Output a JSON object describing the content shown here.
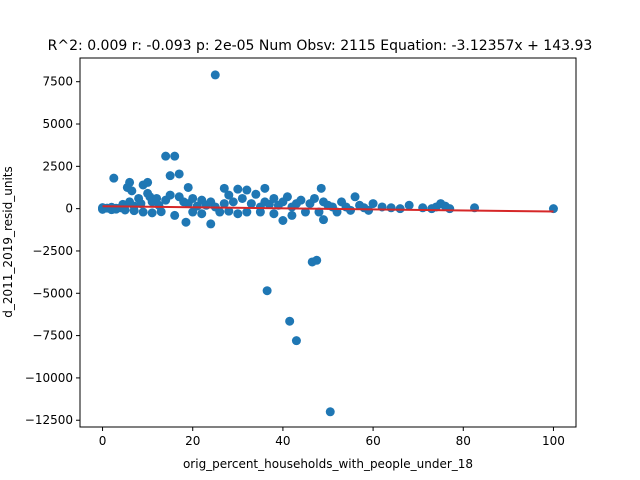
{
  "chart_data": {
    "type": "scatter",
    "title": "R^2: 0.009 r: -0.093 p: 2e-05 Num Obsv: 2115 Equation: -3.12357x + 143.93",
    "xlabel": "orig_percent_households_with_people_under_18",
    "ylabel": "d_2011_2019_resid_units",
    "xlim": [
      -5,
      105
    ],
    "ylim": [
      -12900,
      8900
    ],
    "xticks": [
      0,
      20,
      40,
      60,
      80,
      100
    ],
    "yticks": [
      -12500,
      -10000,
      -7500,
      -5000,
      -2500,
      0,
      2500,
      5000,
      7500
    ],
    "grid": false,
    "point_color": "#1f77b4",
    "line_color": "#d62728",
    "regression": {
      "slope": -3.12357,
      "intercept": 143.93,
      "x_range": [
        0,
        100
      ]
    },
    "points": [
      [
        0,
        0
      ],
      [
        0,
        60
      ],
      [
        0,
        -40
      ],
      [
        1,
        30
      ],
      [
        2,
        80
      ],
      [
        2,
        -60
      ],
      [
        2.5,
        1800
      ],
      [
        3,
        20
      ],
      [
        3,
        -30
      ],
      [
        4,
        50
      ],
      [
        4.5,
        250
      ],
      [
        5,
        -80
      ],
      [
        5.5,
        1250
      ],
      [
        6,
        1550
      ],
      [
        6,
        400
      ],
      [
        6.5,
        1050
      ],
      [
        7,
        150
      ],
      [
        7,
        -120
      ],
      [
        8,
        600
      ],
      [
        8.5,
        300
      ],
      [
        9,
        1400
      ],
      [
        9,
        -200
      ],
      [
        10,
        1550
      ],
      [
        10,
        900
      ],
      [
        10.5,
        700
      ],
      [
        11,
        400
      ],
      [
        11,
        -250
      ],
      [
        12,
        600
      ],
      [
        12.5,
        200
      ],
      [
        13,
        -180
      ],
      [
        14,
        3100
      ],
      [
        14,
        500
      ],
      [
        15,
        1950
      ],
      [
        15,
        800
      ],
      [
        16,
        3100
      ],
      [
        16,
        -400
      ],
      [
        17,
        2050
      ],
      [
        17,
        700
      ],
      [
        18,
        400
      ],
      [
        18.5,
        -800
      ],
      [
        19,
        1250
      ],
      [
        19,
        300
      ],
      [
        20,
        600
      ],
      [
        20,
        -200
      ],
      [
        21,
        150
      ],
      [
        22,
        500
      ],
      [
        22,
        -300
      ],
      [
        23,
        200
      ],
      [
        24,
        -900
      ],
      [
        24,
        400
      ],
      [
        25,
        7900
      ],
      [
        25,
        100
      ],
      [
        26,
        -200
      ],
      [
        27,
        1200
      ],
      [
        27,
        300
      ],
      [
        28,
        800
      ],
      [
        28,
        -150
      ],
      [
        29,
        400
      ],
      [
        30,
        1150
      ],
      [
        30,
        -300
      ],
      [
        31,
        600
      ],
      [
        32,
        1100
      ],
      [
        32,
        -200
      ],
      [
        33,
        300
      ],
      [
        34,
        850
      ],
      [
        35,
        100
      ],
      [
        35,
        -200
      ],
      [
        36,
        1200
      ],
      [
        36,
        400
      ],
      [
        36.5,
        -4850
      ],
      [
        37,
        250
      ],
      [
        38,
        -300
      ],
      [
        38,
        600
      ],
      [
        39,
        200
      ],
      [
        40,
        -700
      ],
      [
        40,
        400
      ],
      [
        41,
        700
      ],
      [
        41.5,
        -6650
      ],
      [
        42,
        100
      ],
      [
        42,
        -400
      ],
      [
        43,
        -7800
      ],
      [
        43,
        300
      ],
      [
        44,
        500
      ],
      [
        45,
        -200
      ],
      [
        46,
        300
      ],
      [
        46.5,
        -3150
      ],
      [
        47,
        600
      ],
      [
        47.5,
        -3050
      ],
      [
        48,
        -200
      ],
      [
        48.5,
        1200
      ],
      [
        49,
        400
      ],
      [
        49,
        -650
      ],
      [
        50,
        200
      ],
      [
        50.5,
        -12000
      ],
      [
        51,
        100
      ],
      [
        52,
        -200
      ],
      [
        53,
        400
      ],
      [
        54,
        100
      ],
      [
        55,
        -100
      ],
      [
        56,
        700
      ],
      [
        57,
        200
      ],
      [
        58,
        50
      ],
      [
        59,
        -100
      ],
      [
        60,
        300
      ],
      [
        62,
        100
      ],
      [
        64,
        50
      ],
      [
        66,
        0
      ],
      [
        68,
        200
      ],
      [
        71,
        50
      ],
      [
        73,
        0
      ],
      [
        74,
        100
      ],
      [
        75,
        300
      ],
      [
        76,
        150
      ],
      [
        77,
        0
      ],
      [
        82.5,
        50
      ],
      [
        100,
        0
      ]
    ]
  }
}
